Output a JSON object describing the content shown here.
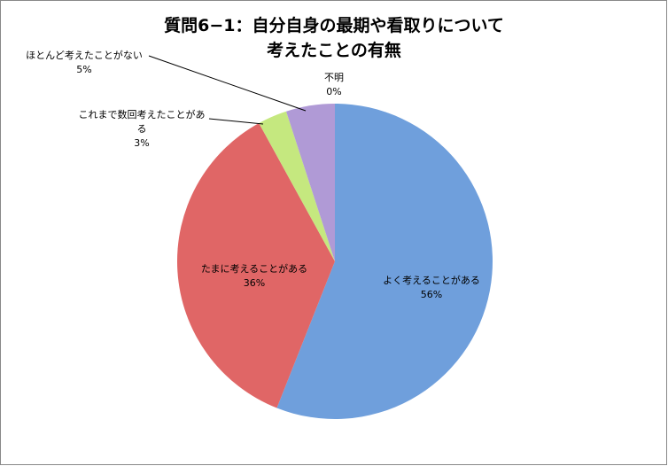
{
  "chart_data": {
    "type": "pie",
    "title": [
      "質問6−1：自分自身の最期や看取りについて",
      "考えたことの有無"
    ],
    "categories": [
      "よく考えることがある",
      "たまに考えることがある",
      "これまで数回考えたことがある",
      "ほとんど考えたことがない",
      "不明"
    ],
    "values": [
      56,
      36,
      3,
      5,
      0
    ],
    "value_labels": [
      "56%",
      "36%",
      "3%",
      "5%",
      "0%"
    ],
    "colors": [
      "#6f9fdc",
      "#e06666",
      "#c5e87f",
      "#b09ad6",
      "#f79646"
    ]
  }
}
